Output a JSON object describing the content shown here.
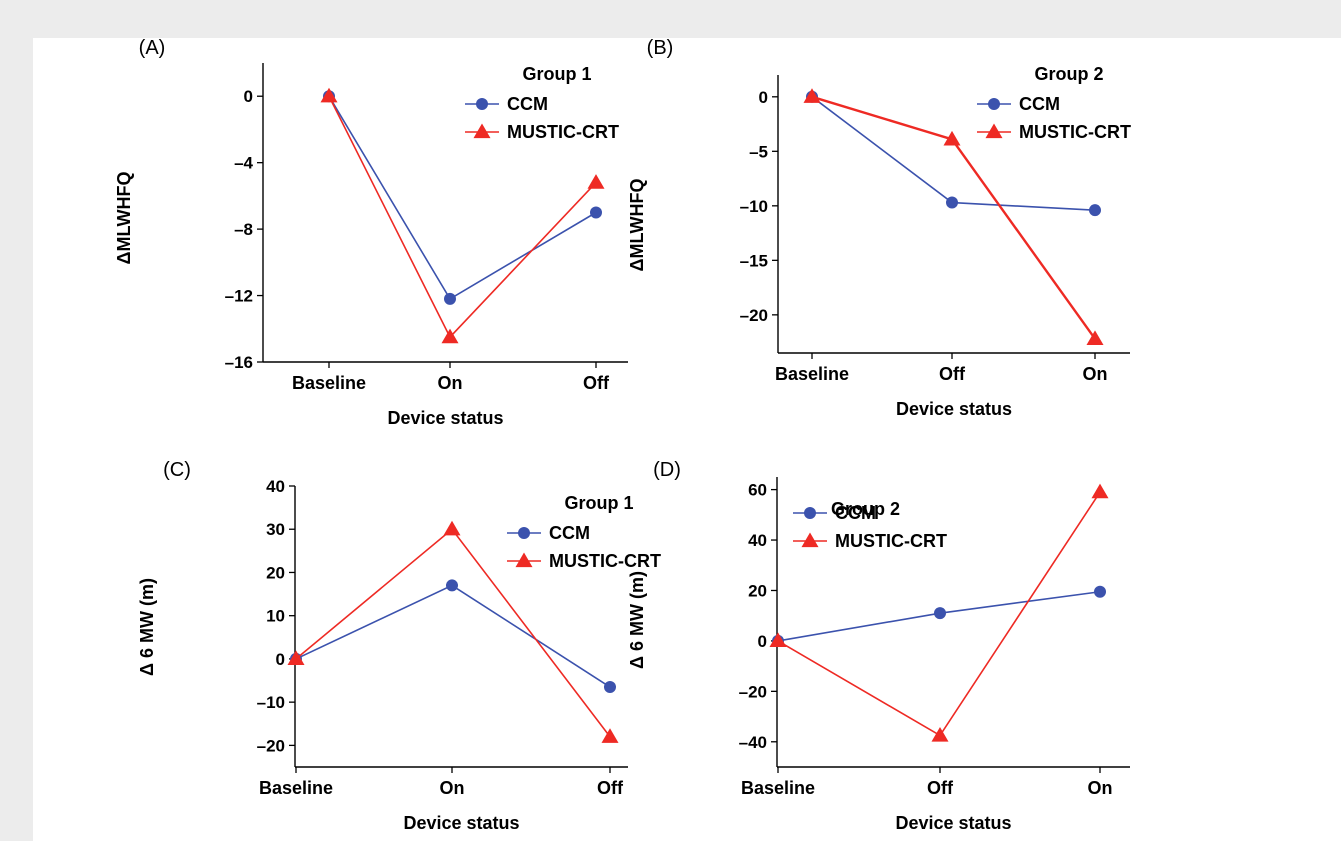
{
  "colors": {
    "ccm": "#3b52ad",
    "music": "#ee2a24"
  },
  "chart_data": [
    {
      "type": "line",
      "panel": "(A)",
      "legend_title": "Group 1",
      "categories": [
        "Baseline",
        "On",
        "Off"
      ],
      "xlabel": "Device status",
      "ylabel": "ΔMLWHFQ",
      "ylim": [
        -16,
        2
      ],
      "yticks": [
        0,
        -4,
        -8,
        -12,
        -16
      ],
      "legend_position": "top-right",
      "series": [
        {
          "name": "CCM",
          "marker": "circle",
          "values": [
            0,
            -12.2,
            -7.0
          ]
        },
        {
          "name": "MUSTIC-CRT",
          "marker": "triangle",
          "values": [
            0,
            -14.5,
            -5.2
          ]
        }
      ]
    },
    {
      "type": "line",
      "panel": "(B)",
      "legend_title": "Group 2",
      "categories": [
        "Baseline",
        "Off",
        "On"
      ],
      "xlabel": "Device status",
      "ylabel": "ΔMLWHFQ",
      "ylim": [
        -23.5,
        2
      ],
      "yticks": [
        0,
        -5,
        -10,
        -15,
        -20
      ],
      "legend_position": "top-right",
      "series": [
        {
          "name": "CCM",
          "marker": "circle",
          "values": [
            0,
            -9.7,
            -10.4
          ]
        },
        {
          "name": "MUSTIC-CRT",
          "marker": "triangle",
          "values": [
            0,
            -3.9,
            -22.2
          ]
        }
      ]
    },
    {
      "type": "line",
      "panel": "(C)",
      "legend_title": "Group 1",
      "categories": [
        "Baseline",
        "On",
        "Off"
      ],
      "xlabel": "Device status",
      "ylabel": "Δ 6 MW (m)",
      "ylim": [
        -25,
        40
      ],
      "yticks": [
        40,
        30,
        20,
        10,
        0,
        -10,
        -20
      ],
      "legend_position": "top-right",
      "series": [
        {
          "name": "CCM",
          "marker": "circle",
          "values": [
            0,
            17,
            -6.5
          ]
        },
        {
          "name": "MUSTIC-CRT",
          "marker": "triangle",
          "values": [
            0,
            30,
            -18
          ]
        }
      ]
    },
    {
      "type": "line",
      "panel": "(D)",
      "legend_title": "Group 2",
      "categories": [
        "Baseline",
        "Off",
        "On"
      ],
      "xlabel": "Device status",
      "ylabel": "Δ 6 MW (m)",
      "ylim": [
        -50,
        65
      ],
      "yticks": [
        60,
        40,
        20,
        0,
        -20,
        -40
      ],
      "legend_position": "top-left",
      "series": [
        {
          "name": "CCM",
          "marker": "circle",
          "values": [
            0,
            11,
            19.5
          ]
        },
        {
          "name": "MUSTIC-CRT",
          "marker": "triangle",
          "values": [
            0,
            -37.5,
            59
          ]
        }
      ]
    }
  ]
}
